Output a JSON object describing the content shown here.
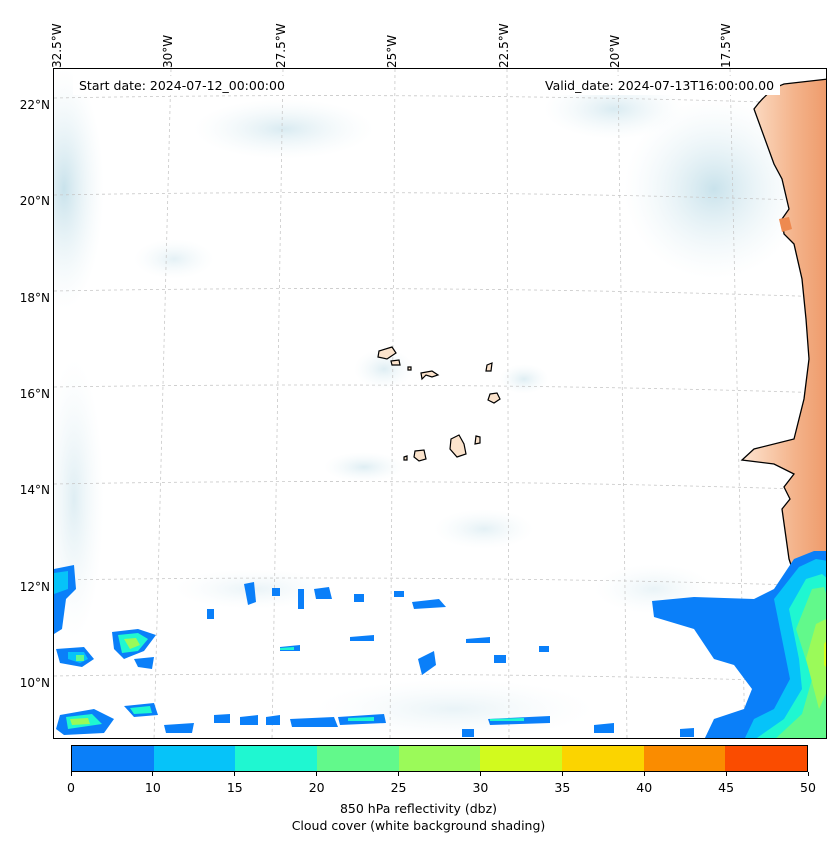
{
  "map": {
    "start_date": "Start date: 2024-07-12_00:00:00",
    "valid_date": "Valid_date: 2024-07-13T16:00:00.00",
    "longitude_labels": [
      "32.5°W",
      "30°W",
      "27.5°W",
      "25°W",
      "22.5°W",
      "20°W",
      "17.5°W"
    ],
    "latitude_labels": [
      "22°N",
      "20°N",
      "18°N",
      "16°N",
      "14°N",
      "12°N",
      "10°N"
    ],
    "colors": {
      "land_fill": "#fbe3cc",
      "warm_land_shading": "#f1a377",
      "cloud_shading": "#cfe6ee",
      "gridline": "#c8c8c8",
      "coastline": "#000000"
    }
  },
  "colorbar": {
    "ticks": [
      "0",
      "10",
      "15",
      "20",
      "25",
      "30",
      "35",
      "40",
      "45",
      "50"
    ],
    "colors": [
      "#0a7ff9",
      "#06c3f9",
      "#1ff7d1",
      "#62f98b",
      "#9bfa59",
      "#d2fa1e",
      "#fbd400",
      "#fa8c00",
      "#fa4c00"
    ],
    "label_line1": "850 hPa reflectivity (dbz)",
    "label_line2": "Cloud cover (white background shading)"
  }
}
